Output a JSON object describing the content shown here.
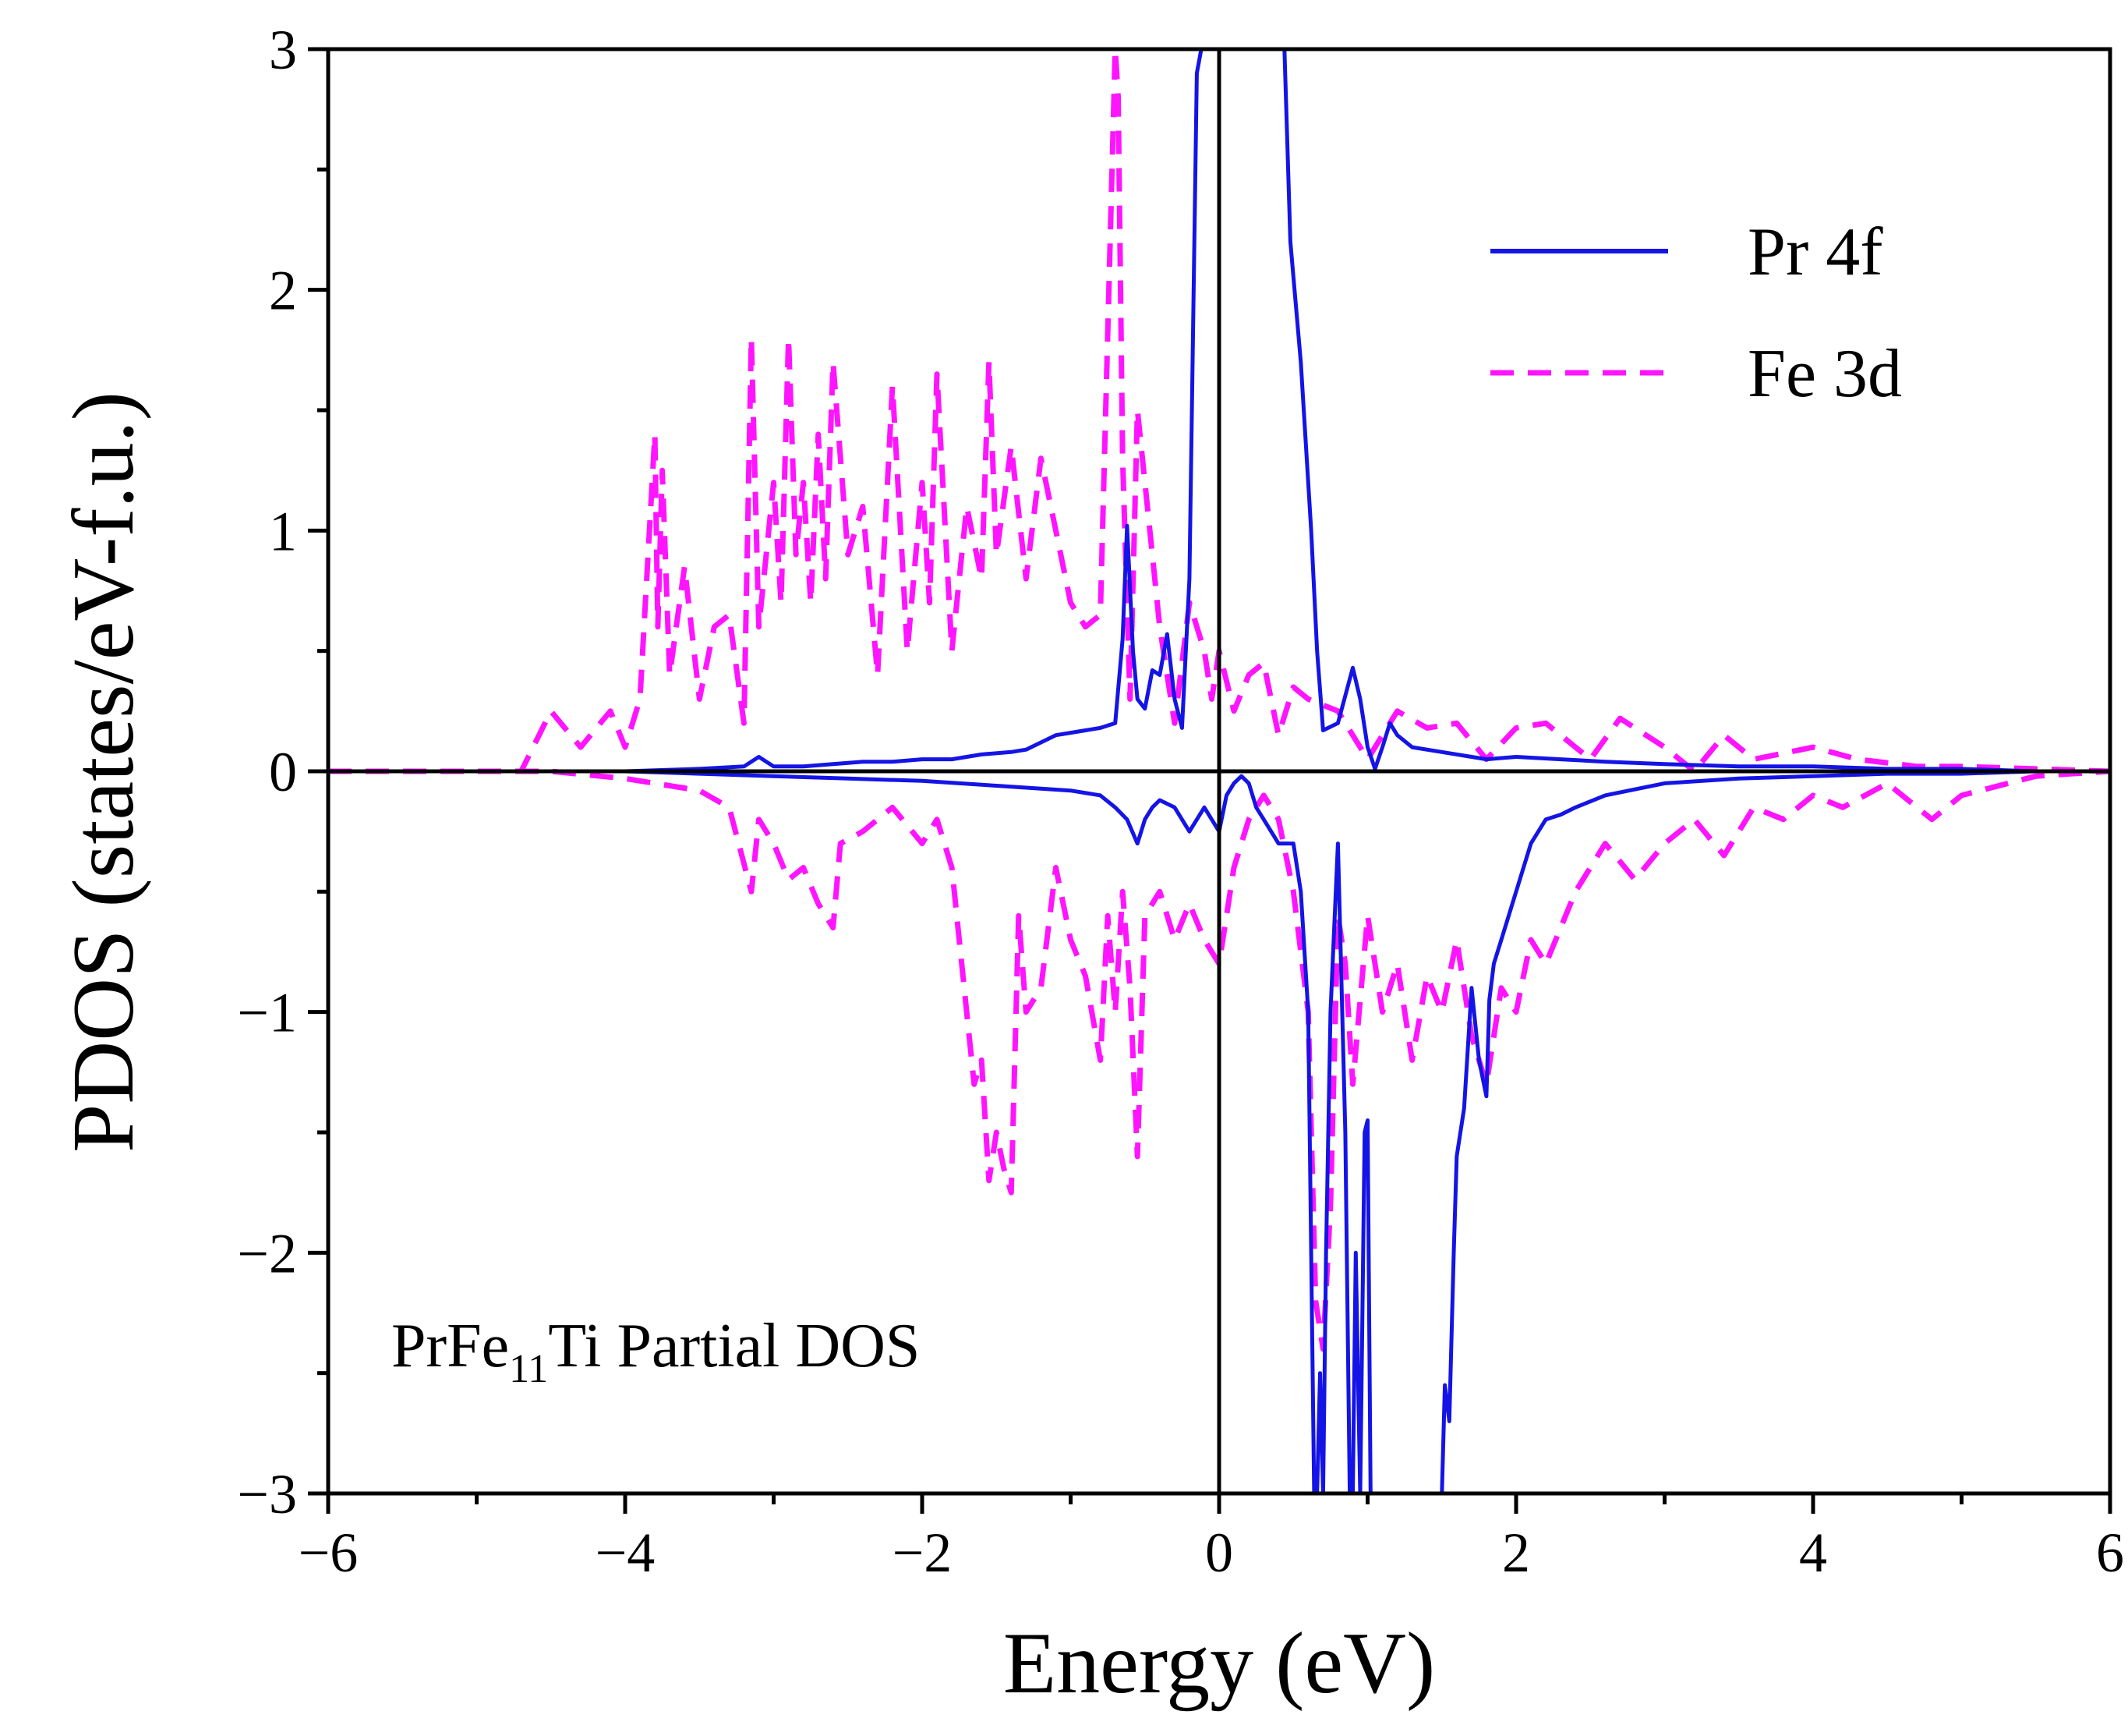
{
  "chart_data": {
    "type": "line",
    "title": "",
    "xlabel": "Energy (eV)",
    "ylabel": "PDOS (states/eV-f.u.)",
    "xlim": [
      -6,
      6
    ],
    "ylim": [
      -3,
      3
    ],
    "xticks": [
      -6,
      -4,
      -2,
      0,
      2,
      4,
      6
    ],
    "xtick_labels": [
      "−6",
      "−4",
      "−2",
      "0",
      "2",
      "4",
      "6"
    ],
    "yticks": [
      -3,
      -2,
      -1,
      0,
      1,
      2,
      3
    ],
    "ytick_labels": [
      "−3",
      "−2",
      "−1",
      "0",
      "1",
      "2",
      "3"
    ],
    "grid": false,
    "legend_position": "top-right",
    "annotation": {
      "main": "PrFe",
      "sub": "11",
      "rest": "Ti Partial DOS"
    },
    "colors": {
      "pr4f": "#1414e6",
      "fe3d": "#ff14ff",
      "axes": "#000000"
    },
    "series": [
      {
        "name": "Pr 4f",
        "style": "solid",
        "channel": "spin-up",
        "x": [
          -6.0,
          -5.0,
          -4.0,
          -3.5,
          -3.2,
          -3.1,
          -3.0,
          -2.8,
          -2.6,
          -2.4,
          -2.2,
          -2.0,
          -1.8,
          -1.6,
          -1.4,
          -1.3,
          -1.2,
          -1.1,
          -1.0,
          -0.9,
          -0.8,
          -0.7,
          -0.65,
          -0.62,
          -0.58,
          -0.55,
          -0.5,
          -0.45,
          -0.4,
          -0.35,
          -0.3,
          -0.25,
          -0.2,
          -0.15,
          -0.12,
          0.1,
          0.44,
          0.48,
          0.55,
          0.62,
          0.66,
          0.7,
          0.8,
          0.9,
          0.95,
          1.0,
          1.05,
          1.1,
          1.15,
          1.2,
          1.3,
          1.5,
          1.7,
          1.8,
          2.0,
          2.3,
          2.6,
          3.0,
          3.5,
          4.0,
          4.5,
          5.0,
          5.5,
          6.0
        ],
        "y": [
          0.0,
          0.0,
          0.0,
          0.01,
          0.02,
          0.06,
          0.02,
          0.02,
          0.03,
          0.04,
          0.04,
          0.05,
          0.05,
          0.07,
          0.08,
          0.09,
          0.12,
          0.15,
          0.16,
          0.17,
          0.18,
          0.2,
          0.55,
          1.02,
          0.5,
          0.3,
          0.26,
          0.42,
          0.4,
          0.57,
          0.3,
          0.18,
          0.8,
          2.9,
          3.0,
          3.0,
          3.0,
          2.2,
          1.7,
          1.0,
          0.5,
          0.17,
          0.2,
          0.43,
          0.3,
          0.1,
          0.01,
          0.1,
          0.2,
          0.15,
          0.1,
          0.08,
          0.06,
          0.05,
          0.06,
          0.05,
          0.04,
          0.03,
          0.02,
          0.02,
          0.01,
          0.01,
          0.0,
          0.0
        ]
      },
      {
        "name": "Pr 4f",
        "style": "solid",
        "channel": "spin-down",
        "x": [
          -6.0,
          -5.0,
          -4.0,
          -3.5,
          -3.0,
          -2.5,
          -2.0,
          -1.5,
          -1.0,
          -0.8,
          -0.7,
          -0.62,
          -0.55,
          -0.5,
          -0.45,
          -0.4,
          -0.3,
          -0.2,
          -0.1,
          0.0,
          0.05,
          0.1,
          0.15,
          0.2,
          0.25,
          0.3,
          0.4,
          0.5,
          0.55,
          0.6,
          0.62,
          0.64,
          0.66,
          0.68,
          0.7,
          0.72,
          0.75,
          0.8,
          0.85,
          0.88,
          0.9,
          0.92,
          0.95,
          0.98,
          1.0,
          1.02,
          1.05,
          1.5,
          1.52,
          1.55,
          1.58,
          1.6,
          1.65,
          1.7,
          1.75,
          1.8,
          1.82,
          1.85,
          1.9,
          2.0,
          2.1,
          2.2,
          2.3,
          2.4,
          2.6,
          3.0,
          3.5,
          4.0,
          4.5,
          5.0,
          5.5,
          6.0
        ],
        "y": [
          0.0,
          0.0,
          0.0,
          -0.01,
          -0.02,
          -0.03,
          -0.04,
          -0.06,
          -0.08,
          -0.1,
          -0.15,
          -0.2,
          -0.3,
          -0.2,
          -0.15,
          -0.12,
          -0.15,
          -0.25,
          -0.15,
          -0.25,
          -0.1,
          -0.05,
          -0.02,
          -0.05,
          -0.15,
          -0.2,
          -0.3,
          -0.3,
          -0.5,
          -1.0,
          -2.0,
          -3.0,
          -3.0,
          -2.5,
          -3.0,
          -2.0,
          -1.0,
          -0.3,
          -1.5,
          -3.0,
          -3.0,
          -2.0,
          -3.0,
          -1.5,
          -1.45,
          -3.0,
          -3.0,
          -3.0,
          -2.55,
          -2.7,
          -2.0,
          -1.6,
          -1.4,
          -0.9,
          -1.2,
          -1.35,
          -0.95,
          -0.8,
          -0.7,
          -0.5,
          -0.3,
          -0.2,
          -0.18,
          -0.15,
          -0.1,
          -0.05,
          -0.03,
          -0.02,
          -0.01,
          -0.01,
          0.0,
          0.0
        ]
      },
      {
        "name": "Fe 3d",
        "style": "dashed",
        "channel": "spin-up",
        "x": [
          -6.0,
          -5.0,
          -4.7,
          -4.5,
          -4.3,
          -4.1,
          -4.0,
          -3.9,
          -3.8,
          -3.78,
          -3.75,
          -3.7,
          -3.6,
          -3.5,
          -3.4,
          -3.3,
          -3.2,
          -3.15,
          -3.1,
          -3.0,
          -2.95,
          -2.9,
          -2.85,
          -2.8,
          -2.75,
          -2.7,
          -2.65,
          -2.6,
          -2.5,
          -2.4,
          -2.3,
          -2.2,
          -2.1,
          -2.0,
          -1.95,
          -1.9,
          -1.8,
          -1.7,
          -1.6,
          -1.55,
          -1.5,
          -1.4,
          -1.3,
          -1.2,
          -1.1,
          -1.0,
          -0.9,
          -0.8,
          -0.7,
          -0.68,
          -0.65,
          -0.6,
          -0.55,
          -0.5,
          -0.4,
          -0.3,
          -0.2,
          -0.1,
          -0.05,
          0.0,
          0.1,
          0.2,
          0.3,
          0.4,
          0.5,
          0.6,
          0.8,
          1.0,
          1.2,
          1.4,
          1.6,
          1.8,
          2.0,
          2.2,
          2.5,
          2.7,
          3.0,
          3.2,
          3.4,
          3.6,
          4.0,
          4.3,
          4.7,
          5.0,
          5.5,
          6.0
        ],
        "y": [
          0.0,
          0.0,
          0.0,
          0.25,
          0.1,
          0.25,
          0.1,
          0.3,
          1.4,
          0.6,
          1.25,
          0.4,
          0.85,
          0.3,
          0.6,
          0.65,
          0.2,
          1.8,
          0.6,
          1.2,
          0.7,
          1.8,
          0.9,
          1.2,
          0.7,
          1.4,
          0.8,
          1.7,
          0.9,
          1.1,
          0.4,
          1.6,
          0.5,
          1.2,
          0.7,
          1.65,
          0.5,
          1.1,
          0.8,
          1.7,
          0.9,
          1.35,
          0.8,
          1.3,
          1.0,
          0.7,
          0.6,
          0.65,
          3.0,
          2.8,
          1.3,
          0.3,
          1.5,
          1.2,
          0.6,
          0.2,
          0.7,
          0.5,
          0.3,
          0.5,
          0.25,
          0.4,
          0.45,
          0.15,
          0.35,
          0.3,
          0.25,
          0.05,
          0.25,
          0.18,
          0.2,
          0.05,
          0.18,
          0.2,
          0.05,
          0.22,
          0.1,
          0.0,
          0.15,
          0.05,
          0.1,
          0.05,
          0.02,
          0.02,
          0.01,
          0.0
        ]
      },
      {
        "name": "Fe 3d",
        "style": "dashed",
        "channel": "spin-down",
        "x": [
          -6.0,
          -5.0,
          -4.5,
          -4.0,
          -3.8,
          -3.5,
          -3.3,
          -3.15,
          -3.1,
          -3.0,
          -2.9,
          -2.8,
          -2.7,
          -2.6,
          -2.55,
          -2.4,
          -2.2,
          -2.0,
          -1.9,
          -1.8,
          -1.75,
          -1.65,
          -1.6,
          -1.55,
          -1.5,
          -1.45,
          -1.4,
          -1.35,
          -1.3,
          -1.2,
          -1.1,
          -1.0,
          -0.9,
          -0.8,
          -0.75,
          -0.7,
          -0.65,
          -0.6,
          -0.55,
          -0.5,
          -0.4,
          -0.3,
          -0.2,
          -0.1,
          0.0,
          0.1,
          0.2,
          0.3,
          0.4,
          0.5,
          0.6,
          0.65,
          0.7,
          0.75,
          0.8,
          0.85,
          0.9,
          1.0,
          1.1,
          1.2,
          1.3,
          1.4,
          1.5,
          1.6,
          1.7,
          1.8,
          1.9,
          2.0,
          2.1,
          2.2,
          2.4,
          2.6,
          2.8,
          3.0,
          3.2,
          3.4,
          3.6,
          3.8,
          4.0,
          4.2,
          4.5,
          4.8,
          5.0,
          5.5,
          6.0
        ],
        "y": [
          0.0,
          0.0,
          0.0,
          -0.03,
          -0.05,
          -0.08,
          -0.15,
          -0.5,
          -0.2,
          -0.3,
          -0.45,
          -0.4,
          -0.55,
          -0.65,
          -0.3,
          -0.25,
          -0.15,
          -0.3,
          -0.2,
          -0.4,
          -0.7,
          -1.3,
          -1.2,
          -1.7,
          -1.5,
          -1.65,
          -1.75,
          -0.6,
          -1.0,
          -0.9,
          -0.4,
          -0.7,
          -0.85,
          -1.2,
          -0.6,
          -1.0,
          -0.5,
          -0.9,
          -1.6,
          -0.6,
          -0.5,
          -0.7,
          -0.55,
          -0.7,
          -0.8,
          -0.4,
          -0.2,
          -0.1,
          -0.2,
          -0.5,
          -1.0,
          -2.2,
          -2.4,
          -1.8,
          -0.6,
          -0.8,
          -1.3,
          -0.6,
          -1.0,
          -0.8,
          -1.2,
          -0.85,
          -1.0,
          -0.7,
          -1.1,
          -1.3,
          -0.9,
          -1.0,
          -0.7,
          -0.8,
          -0.5,
          -0.3,
          -0.45,
          -0.3,
          -0.2,
          -0.35,
          -0.15,
          -0.2,
          -0.1,
          -0.15,
          -0.05,
          -0.2,
          -0.1,
          -0.02,
          0.0
        ]
      }
    ]
  }
}
